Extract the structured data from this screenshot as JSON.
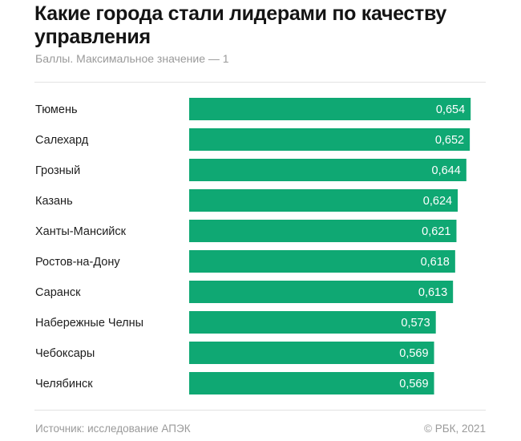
{
  "header": {
    "title": "Какие города стали лидерами по качеству управления",
    "subtitle": "Баллы. Максимальное значение — 1"
  },
  "footer": {
    "source": "Источник: исследование АПЭК",
    "copyright": "© РБК, 2021"
  },
  "chart_data": {
    "type": "bar",
    "orientation": "horizontal",
    "title": "Какие города стали лидерами по качеству управления",
    "subtitle": "Баллы. Максимальное значение — 1",
    "xlabel": "",
    "ylabel": "",
    "xlim": [
      0,
      1
    ],
    "grid": false,
    "bar_color": "#0fa873",
    "categories": [
      "Тюмень",
      "Салехард",
      "Грозный",
      "Казань",
      "Ханты-Мансийск",
      "Ростов-на-Дону",
      "Саранск",
      "Набережные Челны",
      "Чебоксары",
      "Челябинск"
    ],
    "values": [
      0.654,
      0.652,
      0.644,
      0.624,
      0.621,
      0.618,
      0.613,
      0.573,
      0.569,
      0.569
    ],
    "value_labels": [
      "0,654",
      "0,652",
      "0,644",
      "0,624",
      "0,621",
      "0,618",
      "0,613",
      "0,573",
      "0,569",
      "0,569"
    ]
  }
}
